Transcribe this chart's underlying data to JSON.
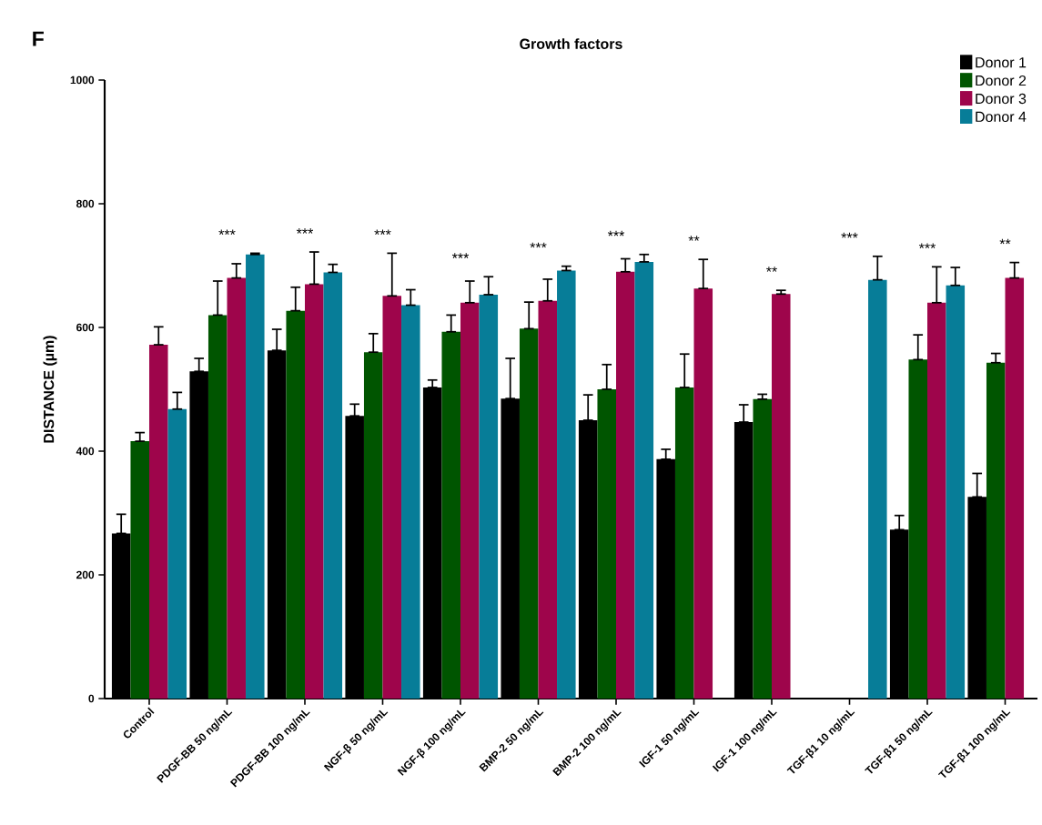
{
  "chart_data": {
    "type": "bar",
    "title": "Growth factors",
    "ylabel": "DISTANCE (µm)",
    "categories": [
      "Control",
      "PDGF-BB 50 ng/mL",
      "PDGF-BB 100 ng/mL",
      "NGF-β 50 ng/mL",
      "NGF-β 100 ng/mL",
      "BMP-2 50 ng/mL",
      "BMP-2 100 ng/mL",
      "IGF-1 50 ng/mL",
      "IGF-1 100 ng/mL",
      "TGF-β1 10 ng/mL",
      "TGF-β1 50 ng/mL",
      "TGF-β1 100 ng/mL"
    ],
    "series": [
      {
        "name": "Donor 1",
        "color": "#000000",
        "values": [
          267,
          529,
          563,
          457,
          503,
          485,
          450,
          387,
          447,
          null,
          273,
          326
        ],
        "errors": [
          [
            267,
            298
          ],
          [
            529,
            550
          ],
          [
            563,
            597
          ],
          [
            457,
            476
          ],
          [
            503,
            515
          ],
          [
            485,
            550
          ],
          [
            450,
            491
          ],
          [
            387,
            403
          ],
          [
            447,
            475
          ],
          null,
          [
            273,
            296
          ],
          [
            326,
            364
          ]
        ]
      },
      {
        "name": "Donor 2",
        "color": "#005500",
        "values": [
          416,
          620,
          627,
          560,
          593,
          598,
          500,
          503,
          484,
          null,
          548,
          543
        ],
        "errors": [
          [
            416,
            430
          ],
          [
            620,
            675
          ],
          [
            627,
            665
          ],
          [
            560,
            590
          ],
          [
            593,
            620
          ],
          [
            598,
            641
          ],
          [
            500,
            540
          ],
          [
            503,
            557
          ],
          [
            484,
            492
          ],
          null,
          [
            548,
            588
          ],
          [
            543,
            558
          ]
        ]
      },
      {
        "name": "Donor 3",
        "color": "#9e054b",
        "values": [
          572,
          680,
          670,
          651,
          640,
          643,
          690,
          663,
          654,
          null,
          640,
          680
        ],
        "errors": [
          [
            572,
            601
          ],
          [
            680,
            703
          ],
          [
            670,
            722
          ],
          [
            651,
            720
          ],
          [
            640,
            675
          ],
          [
            643,
            678
          ],
          [
            690,
            711
          ],
          [
            663,
            710
          ],
          [
            654,
            660
          ],
          null,
          [
            640,
            698
          ],
          [
            680,
            705
          ]
        ]
      },
      {
        "name": "Donor 4",
        "color": "#077d98",
        "values": [
          468,
          718,
          689,
          636,
          653,
          692,
          706,
          null,
          null,
          677,
          668,
          null
        ],
        "errors": [
          [
            468,
            495
          ],
          [
            718,
            720
          ],
          [
            689,
            702
          ],
          [
            636,
            661
          ],
          [
            653,
            682
          ],
          [
            692,
            699
          ],
          [
            706,
            718
          ],
          null,
          null,
          [
            677,
            715
          ],
          [
            668,
            697
          ],
          null
        ]
      }
    ],
    "ylim": [
      0,
      1000
    ],
    "yticks": [
      0,
      200,
      400,
      600,
      800,
      1000
    ],
    "legend": "top right",
    "annotations": [
      "F",
      "***",
      "***",
      "***",
      "***",
      "***",
      "***",
      "**",
      "**",
      "***",
      "***",
      "**"
    ]
  }
}
